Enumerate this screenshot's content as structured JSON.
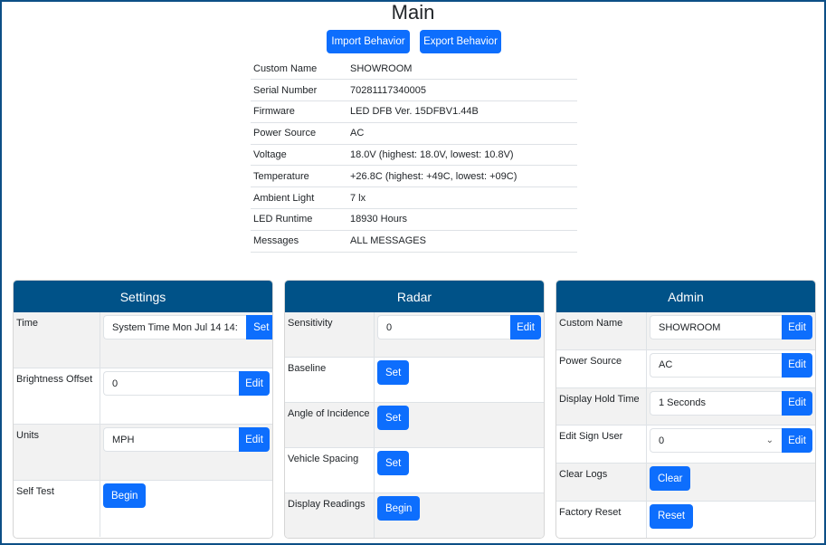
{
  "title": "Main",
  "buttons": {
    "import": "Import Behavior",
    "export": "Export Behavior"
  },
  "info": [
    {
      "label": "Custom Name",
      "value": "SHOWROOM"
    },
    {
      "label": "Serial Number",
      "value": "70281117340005"
    },
    {
      "label": "Firmware",
      "value": "LED DFB Ver. 15DFBV1.44B"
    },
    {
      "label": "Power Source",
      "value": "AC"
    },
    {
      "label": "Voltage",
      "value": "18.0V (highest: 18.0V, lowest: 10.8V)"
    },
    {
      "label": "Temperature",
      "value": "+26.8C (highest: +49C, lowest: +09C)"
    },
    {
      "label": "Ambient Light",
      "value": "7 lx"
    },
    {
      "label": "LED Runtime",
      "value": "18930 Hours"
    },
    {
      "label": "Messages",
      "value": "ALL MESSAGES"
    }
  ],
  "settings": {
    "title": "Settings",
    "rows": [
      {
        "label": "Time",
        "value": "System Time  Mon Jul 14 14:",
        "button": "Set"
      },
      {
        "label": "Brightness Offset",
        "value": "0",
        "button": "Edit"
      },
      {
        "label": "Units",
        "value": "MPH",
        "button": "Edit"
      },
      {
        "label": "Self Test",
        "button": "Begin"
      }
    ]
  },
  "radar": {
    "title": "Radar",
    "rows": [
      {
        "label": "Sensitivity",
        "value": "0",
        "button": "Edit"
      },
      {
        "label": "Baseline",
        "button": "Set"
      },
      {
        "label": "Angle of Incidence",
        "button": "Set"
      },
      {
        "label": "Vehicle Spacing",
        "button": "Set"
      },
      {
        "label": "Display Readings",
        "button": "Begin"
      }
    ]
  },
  "admin": {
    "title": "Admin",
    "rows": [
      {
        "label": "Custom Name",
        "value": "SHOWROOM",
        "button": "Edit"
      },
      {
        "label": "Power Source",
        "value": "AC",
        "button": "Edit"
      },
      {
        "label": "Display Hold Time",
        "value": "1 Seconds",
        "button": "Edit"
      },
      {
        "label": "Edit Sign User",
        "value": "0",
        "button": "Edit"
      },
      {
        "label": "Clear Logs",
        "button": "Clear"
      },
      {
        "label": "Factory Reset",
        "button": "Reset"
      }
    ]
  },
  "colors": {
    "header": "#005288",
    "button": "#0d6efd",
    "frame": "#0d4f86"
  }
}
